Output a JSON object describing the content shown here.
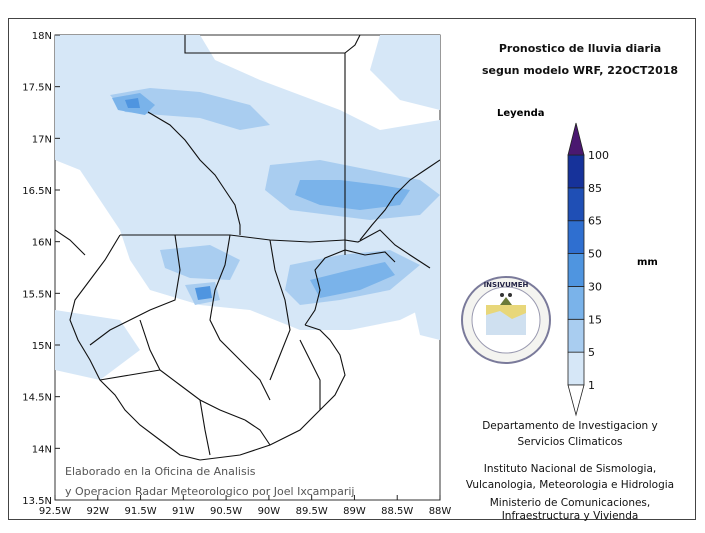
{
  "title_line1": "Pronostico de lluvia diaria",
  "title_line2": "segun modelo WRF,  22OCT2018",
  "legend": {
    "title": "Leyenda",
    "unit": "mm",
    "levels": [
      "1",
      "5",
      "15",
      "30",
      "50",
      "65",
      "85",
      "100"
    ],
    "colors": [
      "#d6e7f7",
      "#a9cdf0",
      "#7ab3ea",
      "#4f95e0",
      "#2f6fd0",
      "#1f4fb5",
      "#16329a",
      "#4a1870"
    ]
  },
  "map": {
    "lon_ticks": [
      "92.5W",
      "92W",
      "91.5W",
      "91W",
      "90.5W",
      "90W",
      "89.5W",
      "89W",
      "88.5W",
      "88W"
    ],
    "lat_ticks": [
      "18N",
      "17.5N",
      "17N",
      "16.5N",
      "16N",
      "15.5N",
      "15N",
      "14.5N",
      "14N",
      "13.5N"
    ]
  },
  "credit_line1": "Elaborado en la Oficina de Analisis",
  "credit_line2": "y Operacion Radar Meteorologico por Joel Ixcamparij",
  "dept_line1": "Departamento de Investigacion y",
  "dept_line2": "Servicios Climaticos",
  "inst_line1": "Instituto Nacional de Sismologia,",
  "inst_line2": "Vulcanologia, Meteorologia e Hidrologia",
  "min_line1": "Ministerio de Comunicaciones,",
  "min_line2": "Infraestructura y Vivienda",
  "logo_text": "INSIVUMEH"
}
